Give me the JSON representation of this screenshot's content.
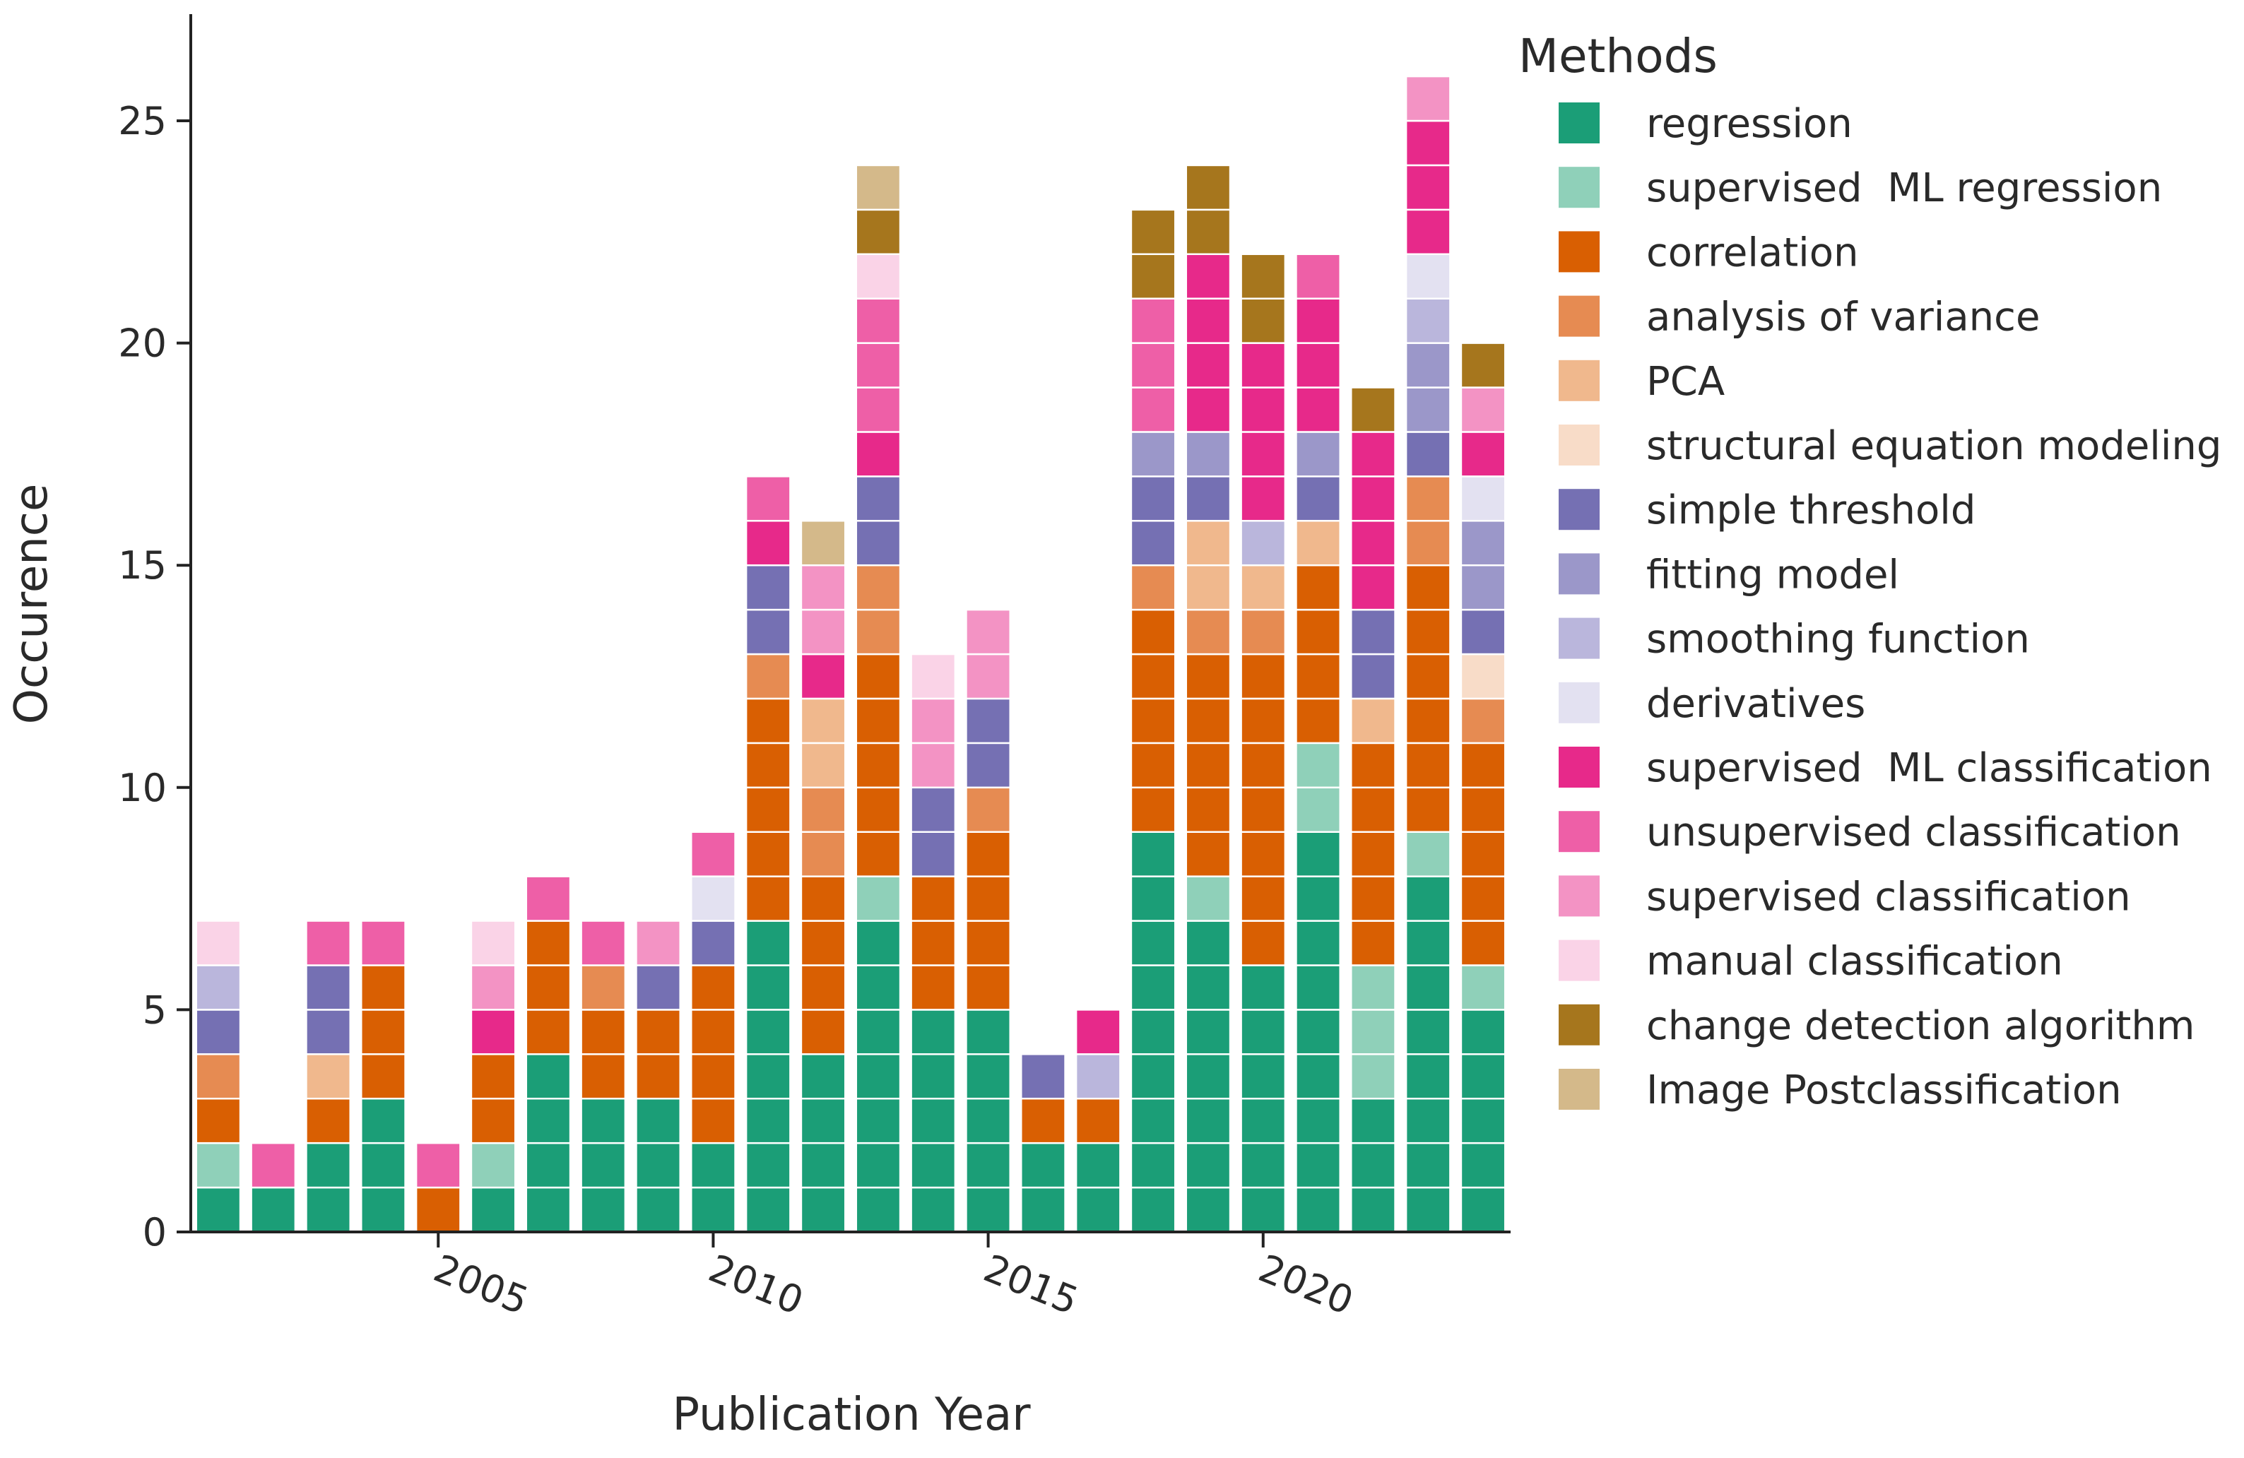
{
  "chart_data": {
    "type": "bar",
    "stacked": true,
    "xlabel": "Publication Year",
    "ylabel": "Occurence",
    "ylim": [
      0,
      27.4
    ],
    "yticks": [
      0,
      5,
      10,
      15,
      20,
      25
    ],
    "xticks": [
      2005,
      2010,
      2015,
      2020
    ],
    "legend_title": "Methods",
    "legend_position": "right",
    "categories": [
      2001,
      2002,
      2003,
      2004,
      2005,
      2006,
      2007,
      2008,
      2009,
      2010,
      2011,
      2012,
      2013,
      2014,
      2015,
      2016,
      2017,
      2018,
      2019,
      2020,
      2021,
      2022,
      2023,
      2024
    ],
    "series": [
      {
        "name": "regression",
        "color": "#1b9e77",
        "values": [
          1,
          1,
          2,
          3,
          0,
          1,
          4,
          3,
          3,
          2,
          7,
          4,
          7,
          5,
          5,
          2,
          2,
          9,
          7,
          6,
          9,
          3,
          8,
          5
        ]
      },
      {
        "name": "supervised  ML regression",
        "color": "#8fd0b9",
        "values": [
          1,
          0,
          0,
          0,
          0,
          1,
          0,
          0,
          0,
          0,
          0,
          0,
          1,
          0,
          0,
          0,
          0,
          0,
          1,
          0,
          2,
          3,
          1,
          1
        ]
      },
      {
        "name": "correlation",
        "color": "#d95f02",
        "values": [
          1,
          0,
          1,
          3,
          1,
          2,
          3,
          2,
          2,
          4,
          5,
          4,
          5,
          3,
          4,
          1,
          1,
          5,
          5,
          7,
          4,
          5,
          6,
          5
        ]
      },
      {
        "name": "analysis of variance",
        "color": "#e68b52",
        "values": [
          1,
          0,
          0,
          0,
          0,
          0,
          0,
          1,
          0,
          0,
          1,
          2,
          2,
          0,
          1,
          0,
          0,
          1,
          1,
          1,
          0,
          0,
          2,
          1
        ]
      },
      {
        "name": "PCA",
        "color": "#f0b88d",
        "values": [
          0,
          0,
          1,
          0,
          0,
          0,
          0,
          0,
          0,
          0,
          0,
          2,
          0,
          0,
          0,
          0,
          0,
          0,
          2,
          1,
          1,
          1,
          0,
          0
        ]
      },
      {
        "name": "structural equation modeling",
        "color": "#f8dcc8",
        "values": [
          0,
          0,
          0,
          0,
          0,
          0,
          0,
          0,
          0,
          0,
          0,
          0,
          0,
          0,
          0,
          0,
          0,
          0,
          0,
          0,
          0,
          0,
          0,
          1
        ]
      },
      {
        "name": "simple threshold",
        "color": "#7570b3",
        "values": [
          1,
          0,
          2,
          0,
          0,
          0,
          0,
          0,
          1,
          1,
          2,
          0,
          2,
          2,
          2,
          1,
          0,
          2,
          1,
          0,
          1,
          2,
          1,
          1
        ]
      },
      {
        "name": "fitting model",
        "color": "#9b97c9",
        "values": [
          0,
          0,
          0,
          0,
          0,
          0,
          0,
          0,
          0,
          0,
          0,
          0,
          0,
          0,
          0,
          0,
          0,
          1,
          1,
          0,
          1,
          0,
          2,
          2
        ]
      },
      {
        "name": "smoothing function",
        "color": "#bab6dc",
        "values": [
          1,
          0,
          0,
          0,
          0,
          0,
          0,
          0,
          0,
          0,
          0,
          0,
          0,
          0,
          0,
          0,
          1,
          0,
          0,
          1,
          0,
          0,
          1,
          0
        ]
      },
      {
        "name": "derivatives",
        "color": "#e3e1f1",
        "values": [
          0,
          0,
          0,
          0,
          0,
          0,
          0,
          0,
          0,
          1,
          0,
          0,
          0,
          0,
          0,
          0,
          0,
          0,
          0,
          0,
          0,
          0,
          1,
          1
        ]
      },
      {
        "name": "supervised  ML classification",
        "color": "#e7298a",
        "values": [
          0,
          0,
          0,
          0,
          0,
          1,
          0,
          0,
          0,
          0,
          1,
          1,
          1,
          0,
          0,
          0,
          1,
          0,
          4,
          4,
          3,
          4,
          3,
          1
        ]
      },
      {
        "name": "unsupervised classification",
        "color": "#ee5fa7",
        "values": [
          0,
          1,
          1,
          1,
          1,
          0,
          1,
          1,
          0,
          1,
          1,
          0,
          3,
          0,
          0,
          0,
          0,
          3,
          0,
          0,
          1,
          0,
          0,
          0
        ]
      },
      {
        "name": "supervised classification",
        "color": "#f393c4",
        "values": [
          0,
          0,
          0,
          0,
          0,
          1,
          0,
          0,
          1,
          0,
          0,
          2,
          0,
          2,
          2,
          0,
          0,
          0,
          0,
          0,
          0,
          0,
          1,
          1
        ]
      },
      {
        "name": "manual classification",
        "color": "#fad3e7",
        "values": [
          1,
          0,
          0,
          0,
          0,
          1,
          0,
          0,
          0,
          0,
          0,
          0,
          1,
          1,
          0,
          0,
          0,
          0,
          0,
          0,
          0,
          0,
          0,
          0
        ]
      },
      {
        "name": "change detection algorithm",
        "color": "#a6761d",
        "values": [
          0,
          0,
          0,
          0,
          0,
          0,
          0,
          0,
          0,
          0,
          0,
          0,
          1,
          0,
          0,
          0,
          0,
          2,
          2,
          2,
          0,
          1,
          0,
          1
        ]
      },
      {
        "name": "Image Postclassification",
        "color": "#d4b98a",
        "values": [
          0,
          0,
          0,
          0,
          0,
          0,
          0,
          0,
          0,
          0,
          0,
          1,
          1,
          0,
          0,
          0,
          0,
          0,
          0,
          0,
          0,
          0,
          0,
          0
        ]
      }
    ]
  }
}
